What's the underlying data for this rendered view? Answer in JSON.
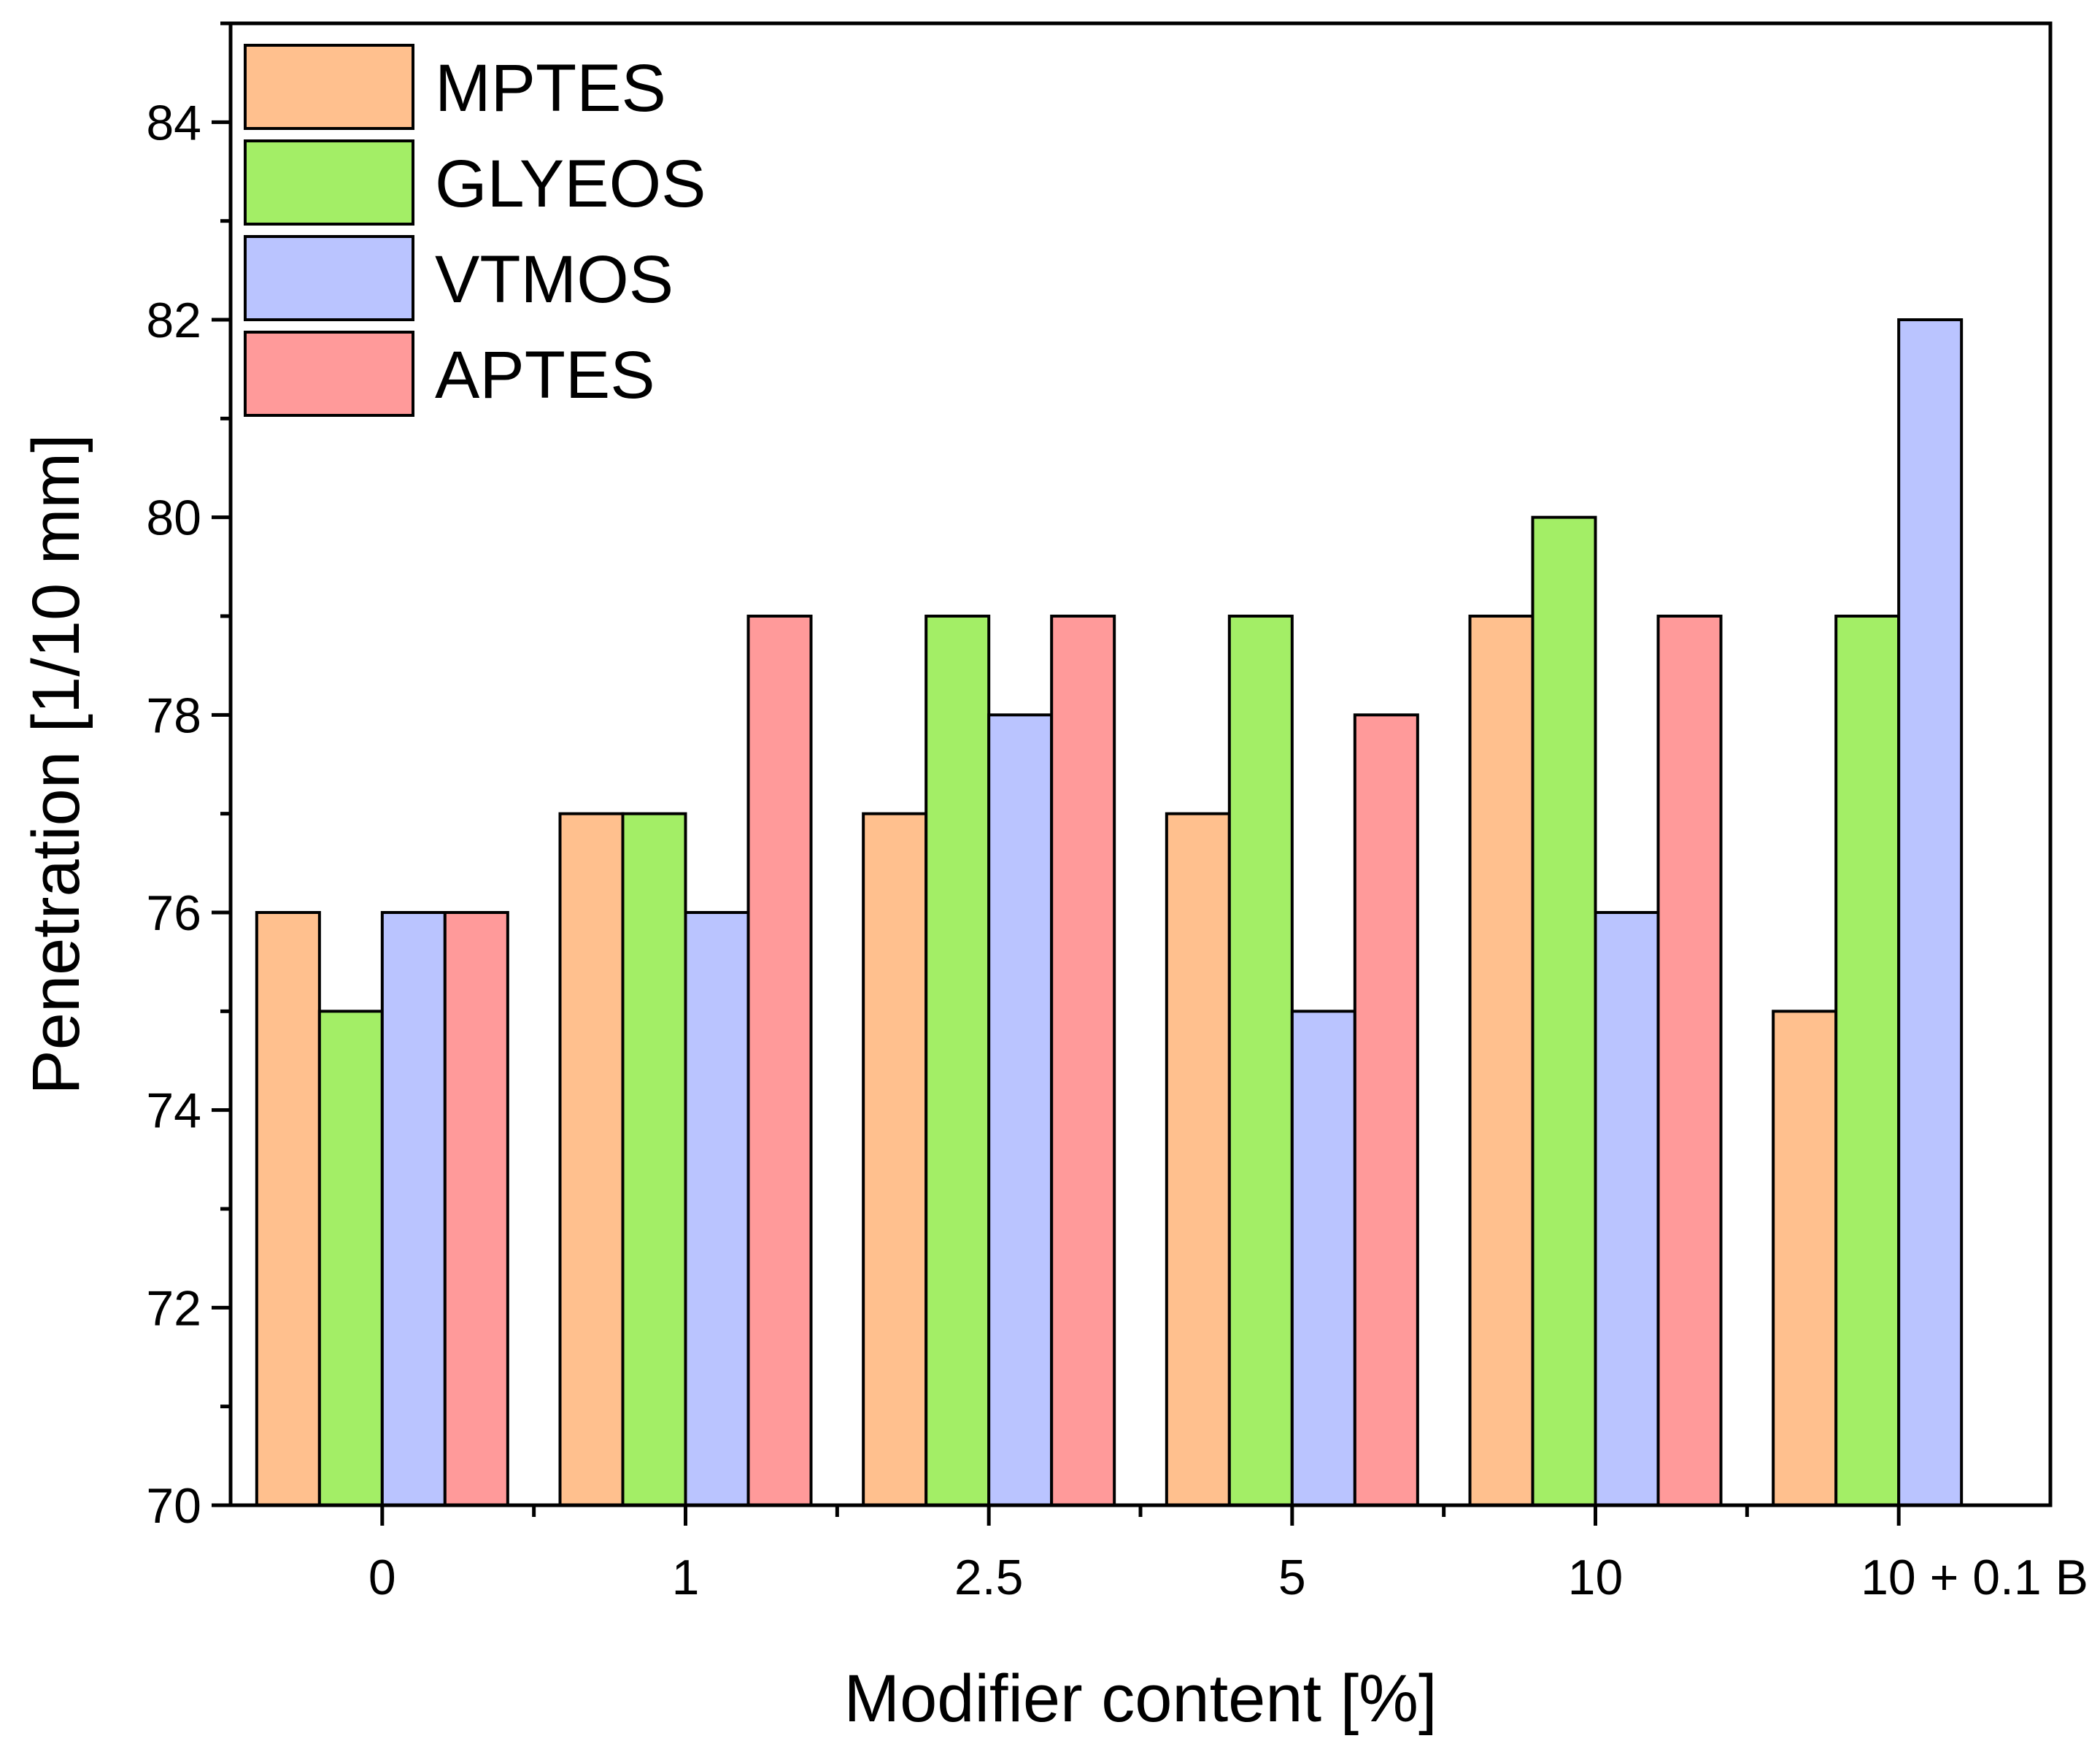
{
  "chart_data": {
    "type": "bar",
    "title": "",
    "xlabel": "Modifier content [%]",
    "ylabel": "Penetration [1/10 mm]",
    "categories": [
      "0",
      "1",
      "2.5",
      "5",
      "10",
      "10 + 0.1 B"
    ],
    "ylim": [
      70,
      85
    ],
    "yticks": [
      70,
      72,
      74,
      76,
      78,
      80,
      82,
      84
    ],
    "grid": false,
    "legend_position": "top-left",
    "series": [
      {
        "name": "MPTES",
        "color": "#FFC08E",
        "values": [
          76,
          77,
          77,
          77,
          79,
          75
        ]
      },
      {
        "name": "GLYEOS",
        "color": "#A3EE66",
        "values": [
          75,
          77,
          79,
          79,
          80,
          79
        ]
      },
      {
        "name": "VTMOS",
        "color": "#BAC4FF",
        "values": [
          76,
          76,
          78,
          75,
          76,
          82
        ]
      },
      {
        "name": "APTES",
        "color": "#FF9A9A",
        "values": [
          76,
          79,
          79,
          78,
          79,
          null
        ]
      }
    ]
  }
}
